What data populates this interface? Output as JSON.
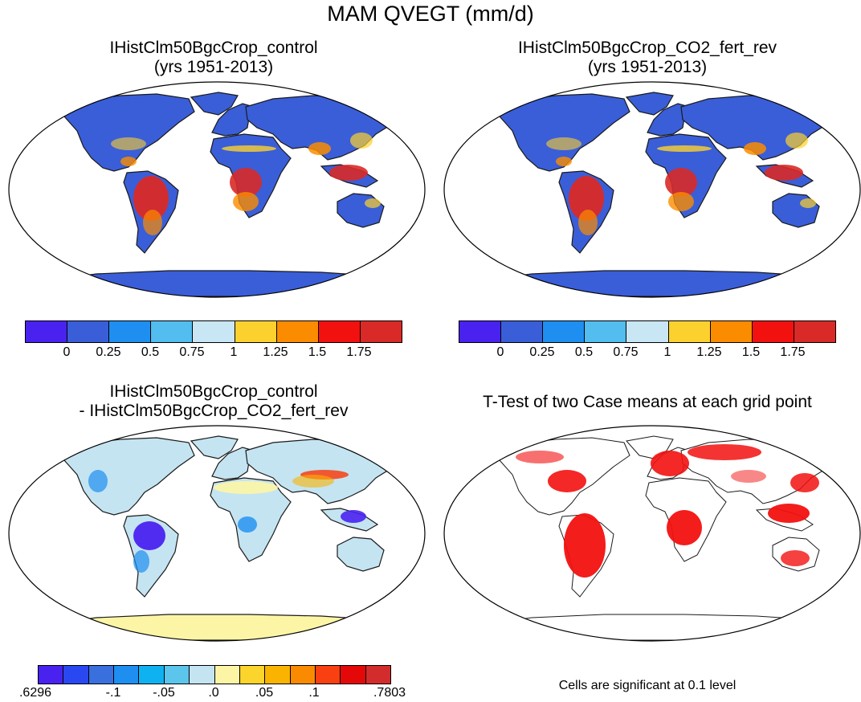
{
  "figure": {
    "title": "MAM QVEGT (mm/d)"
  },
  "panels": [
    {
      "title_line1": "IHistClm50BgcCrop_control",
      "title_line2": "(yrs 1951-2013)",
      "variant": "mean"
    },
    {
      "title_line1": "IHistClm50BgcCrop_CO2_fert_rev",
      "title_line2": "(yrs 1951-2013)",
      "variant": "mean"
    },
    {
      "title_line1": "IHistClm50BgcCrop_control",
      "title_line2": "- IHistClm50BgcCrop_CO2_fert_rev",
      "variant": "diff"
    },
    {
      "title_line1": "T-Test of two Case means at each grid point",
      "title_line2": "",
      "variant": "ttest"
    }
  ],
  "colorbars": {
    "mean": {
      "colors": [
        "#4a22f0",
        "#3a5ed8",
        "#1e8ff0",
        "#52bdee",
        "#c8e6f4",
        "#fcd12e",
        "#fb8c00",
        "#f2110f",
        "#d92a27"
      ],
      "labels": [
        "0",
        "0.25",
        "0.5",
        "0.75",
        "1",
        "1.25",
        "1.5",
        "1.75"
      ]
    },
    "diff": {
      "colors": [
        "#4a22f0",
        "#2a48f2",
        "#3a6fde",
        "#1e8ff0",
        "#0fb2f0",
        "#5cc5ec",
        "#c4e4f2",
        "#fdf5a6",
        "#fbd42c",
        "#fab400",
        "#fa8a00",
        "#f84010",
        "#e50808",
        "#d32c2c"
      ],
      "labels": [
        ".6296",
        "-.1",
        "-.05",
        ".0",
        ".05",
        ".1",
        ".7803"
      ]
    }
  },
  "footnote": "Cells are significant at 0.1 level",
  "map_colors": {
    "land_low": "#3a5ed8",
    "wet": "#d92a27",
    "moist": "#fb8c00",
    "mid": "#fcd12e",
    "diff_base": "#c4e4f2",
    "diff_neg": "#4a22f0",
    "diff_pos": "#f84010",
    "diff_ice": "#fdf5a6",
    "significant": "#f2110f"
  }
}
